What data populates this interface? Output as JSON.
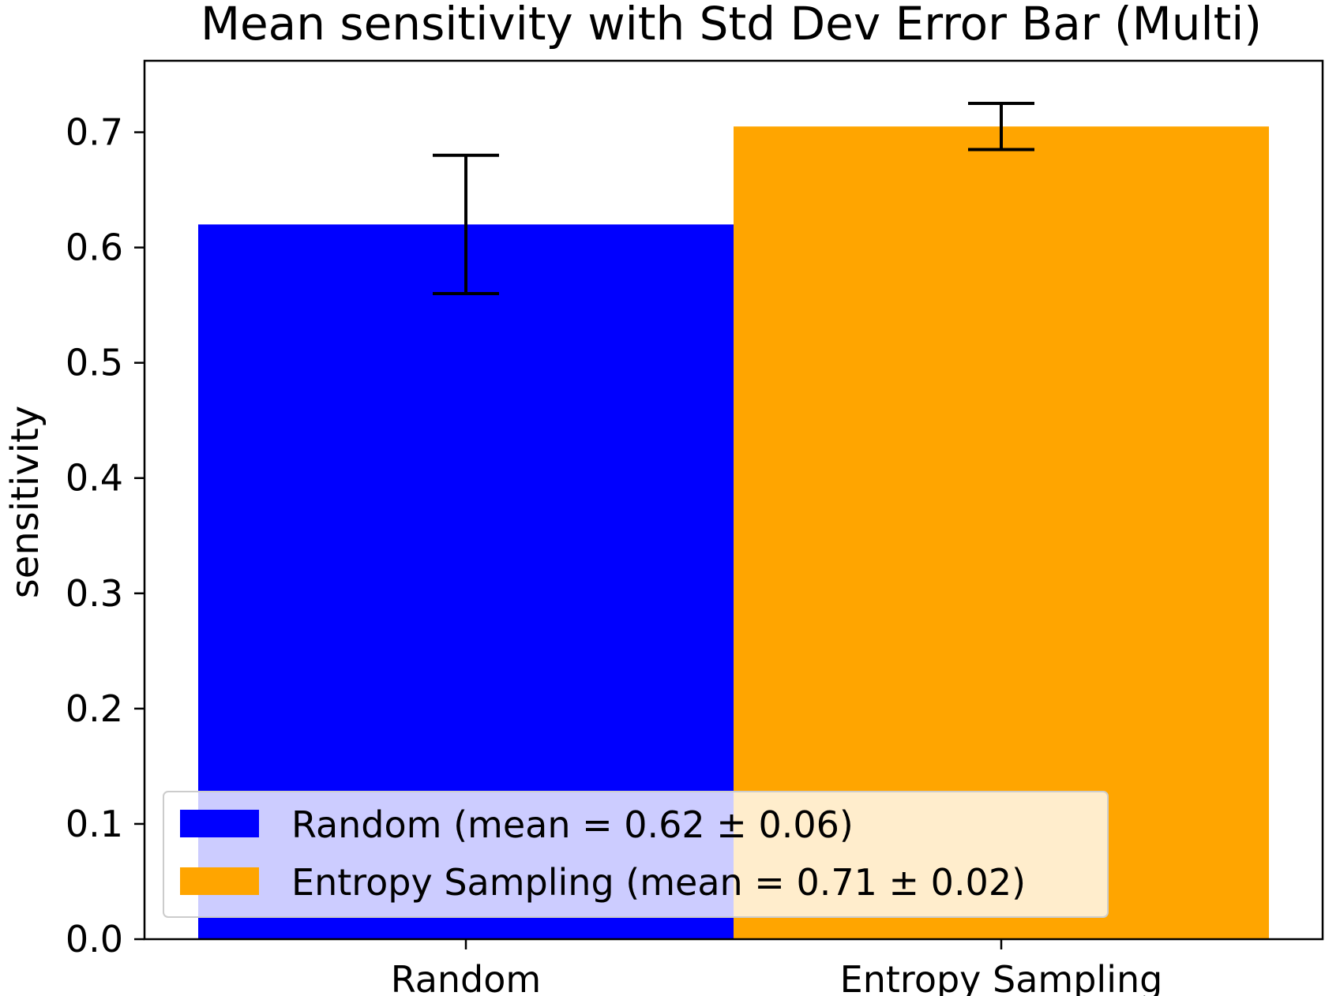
{
  "chart_data": {
    "type": "bar",
    "title": "Mean sensitivity with Std Dev Error Bar (Multi)",
    "xlabel": "",
    "ylabel": "sensitivity",
    "categories": [
      "Random",
      "Entropy Sampling"
    ],
    "values": [
      0.62,
      0.705
    ],
    "errors": [
      0.06,
      0.02
    ],
    "colors": [
      "#0000ff",
      "#ffa500"
    ],
    "ylim": [
      0,
      0.762
    ],
    "yticks": [
      "0.0",
      "0.1",
      "0.2",
      "0.3",
      "0.4",
      "0.5",
      "0.6",
      "0.7"
    ],
    "legend": {
      "location": "lower-left",
      "entries": [
        "Random (mean = 0.62 ± 0.06)",
        "Entropy Sampling (mean = 0.71 ± 0.02)"
      ]
    },
    "grid": false
  }
}
